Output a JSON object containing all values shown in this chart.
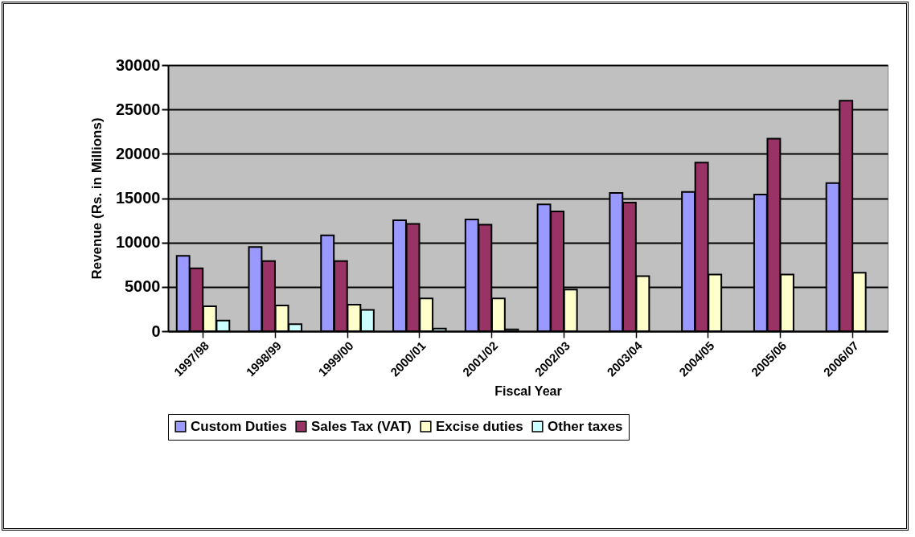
{
  "chart_data": {
    "type": "bar",
    "xlabel": "Fiscal Year",
    "ylabel": "Revenue (Rs. in Millions)",
    "categories": [
      "1997/98",
      "1998/99",
      "1999/00",
      "2000/01",
      "2001/02",
      "2002/03",
      "2003/04",
      "2004/05",
      "2005/06",
      "2006/07"
    ],
    "series": [
      {
        "name": "Custom Duties",
        "color": "#9999ff",
        "values": [
          8500,
          9500,
          10800,
          12500,
          12600,
          14300,
          15600,
          15700,
          15400,
          16700
        ]
      },
      {
        "name": "Sales Tax (VAT)",
        "color": "#993366",
        "values": [
          7100,
          7900,
          7900,
          12100,
          12000,
          13500,
          14500,
          19000,
          21700,
          26000
        ]
      },
      {
        "name": "Excise duties",
        "color": "#ffffcc",
        "values": [
          2800,
          2900,
          3000,
          3700,
          3700,
          4700,
          6200,
          6400,
          6400,
          6600
        ]
      },
      {
        "name": "Other taxes",
        "color": "#ccffff",
        "values": [
          1200,
          800,
          2400,
          300,
          200,
          null,
          null,
          null,
          null,
          null
        ]
      }
    ],
    "ylim": [
      0,
      30000
    ],
    "yticks": [
      0,
      5000,
      10000,
      15000,
      20000,
      25000,
      30000
    ],
    "grid": "y",
    "legend": "bottom"
  }
}
